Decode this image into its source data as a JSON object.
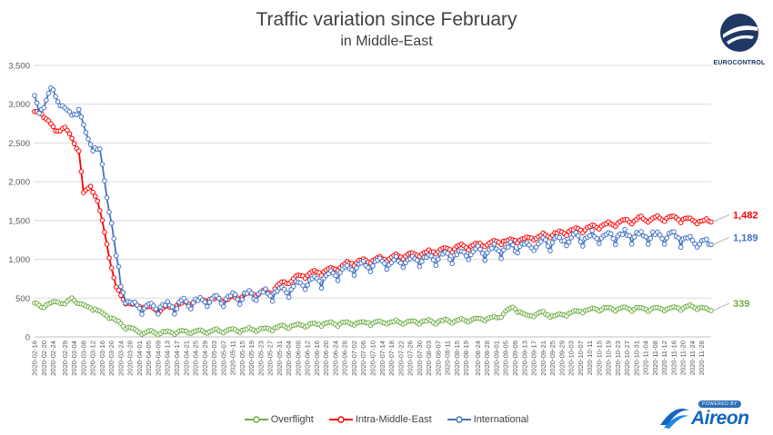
{
  "chart_data": {
    "type": "line",
    "title": "Traffic variation since February",
    "subtitle": "in Middle-East",
    "ylim": [
      0,
      3500
    ],
    "yticks": [
      0,
      500,
      1000,
      1500,
      2000,
      2500,
      3000,
      3500
    ],
    "ytick_labels": [
      "0",
      "500",
      "1,000",
      "1,500",
      "2,000",
      "2,500",
      "3,000",
      "3,500"
    ],
    "grid": "horizontal",
    "legend_position": "bottom",
    "x_start": "2020-02-16",
    "x_end": "2020-12-02",
    "x_tick_labels": [
      "2020-02-16",
      "2020-02-20",
      "2020-02-24",
      "2020-02-29",
      "2020-03-04",
      "2020-03-08",
      "2020-03-12",
      "2020-03-16",
      "2020-03-20",
      "2020-03-24",
      "2020-03-28",
      "2020-04-01",
      "2020-04-05",
      "2020-04-09",
      "2020-04-13",
      "2020-04-17",
      "2020-04-21",
      "2020-04-25",
      "2020-04-29",
      "2020-05-03",
      "2020-05-07",
      "2020-05-11",
      "2020-05-15",
      "2020-05-19",
      "2020-05-23",
      "2020-05-27",
      "2020-05-31",
      "2020-06-04",
      "2020-06-08",
      "2020-06-12",
      "2020-06-16",
      "2020-06-20",
      "2020-06-24",
      "2020-06-28",
      "2020-07-02",
      "2020-07-06",
      "2020-07-10",
      "2020-07-14",
      "2020-07-18",
      "2020-07-22",
      "2020-07-26",
      "2020-07-30",
      "2020-08-03",
      "2020-08-07",
      "2020-08-11",
      "2020-08-15",
      "2020-08-19",
      "2020-08-24",
      "2020-08-28",
      "2020-09-01",
      "2020-09-05",
      "2020-09-09",
      "2020-09-13",
      "2020-09-17",
      "2020-09-21",
      "2020-09-25",
      "2020-09-29",
      "2020-10-03",
      "2020-10-07",
      "2020-10-11",
      "2020-10-15",
      "2020-10-19",
      "2020-10-23",
      "2020-10-27",
      "2020-10-31",
      "2020-11-04",
      "2020-11-08",
      "2020-11-12",
      "2020-11-16",
      "2020-11-20",
      "2020-11-24",
      "2020-11-28"
    ],
    "series": [
      {
        "name": "Overflight",
        "color": "#70ad47",
        "end_label": "339",
        "anchors": [
          [
            "2020-02-16",
            430
          ],
          [
            "2020-02-19",
            390
          ],
          [
            "2020-02-22",
            420
          ],
          [
            "2020-02-26",
            460
          ],
          [
            "2020-02-29",
            420
          ],
          [
            "2020-03-03",
            500
          ],
          [
            "2020-03-06",
            430
          ],
          [
            "2020-03-09",
            390
          ],
          [
            "2020-03-13",
            360
          ],
          [
            "2020-03-16",
            300
          ],
          [
            "2020-03-20",
            250
          ],
          [
            "2020-03-24",
            160
          ],
          [
            "2020-03-28",
            110
          ],
          [
            "2020-04-01",
            60
          ],
          [
            "2020-04-10",
            55
          ],
          [
            "2020-04-20",
            65
          ],
          [
            "2020-05-01",
            75
          ],
          [
            "2020-05-15",
            90
          ],
          [
            "2020-05-25",
            100
          ],
          [
            "2020-06-01",
            130
          ],
          [
            "2020-06-10",
            150
          ],
          [
            "2020-06-20",
            170
          ],
          [
            "2020-07-01",
            180
          ],
          [
            "2020-07-15",
            190
          ],
          [
            "2020-08-01",
            195
          ],
          [
            "2020-08-15",
            210
          ],
          [
            "2020-09-01",
            240
          ],
          [
            "2020-09-08",
            380
          ],
          [
            "2020-09-14",
            270
          ],
          [
            "2020-09-20",
            310
          ],
          [
            "2020-09-26",
            260
          ],
          [
            "2020-10-01",
            300
          ],
          [
            "2020-10-08",
            340
          ],
          [
            "2020-10-15",
            360
          ],
          [
            "2020-10-25",
            370
          ],
          [
            "2020-11-05",
            360
          ],
          [
            "2020-11-15",
            370
          ],
          [
            "2020-11-25",
            390
          ],
          [
            "2020-12-02",
            339
          ]
        ],
        "amp_before_mar20": 25,
        "amp_after_mar20": 35
      },
      {
        "name": "Intra-Middle-East",
        "color": "#ff0000",
        "end_label": "1,482",
        "anchors": [
          [
            "2020-02-16",
            2900
          ],
          [
            "2020-02-19",
            2880
          ],
          [
            "2020-02-22",
            2780
          ],
          [
            "2020-02-25",
            2650
          ],
          [
            "2020-02-29",
            2700
          ],
          [
            "2020-03-03",
            2550
          ],
          [
            "2020-03-06",
            2400
          ],
          [
            "2020-03-08",
            1850
          ],
          [
            "2020-03-11",
            1950
          ],
          [
            "2020-03-14",
            1750
          ],
          [
            "2020-03-17",
            1350
          ],
          [
            "2020-03-20",
            900
          ],
          [
            "2020-03-22",
            620
          ],
          [
            "2020-03-24",
            520
          ],
          [
            "2020-03-28",
            420
          ],
          [
            "2020-04-03",
            380
          ],
          [
            "2020-04-10",
            350
          ],
          [
            "2020-04-20",
            430
          ],
          [
            "2020-05-01",
            480
          ],
          [
            "2020-05-10",
            490
          ],
          [
            "2020-05-20",
            560
          ],
          [
            "2020-05-27",
            580
          ],
          [
            "2020-06-01",
            680
          ],
          [
            "2020-06-10",
            800
          ],
          [
            "2020-06-20",
            850
          ],
          [
            "2020-07-01",
            960
          ],
          [
            "2020-07-15",
            1010
          ],
          [
            "2020-08-01",
            1080
          ],
          [
            "2020-08-15",
            1150
          ],
          [
            "2020-09-01",
            1220
          ],
          [
            "2020-09-15",
            1270
          ],
          [
            "2020-10-01",
            1350
          ],
          [
            "2020-10-15",
            1430
          ],
          [
            "2020-11-01",
            1520
          ],
          [
            "2020-11-15",
            1530
          ],
          [
            "2020-12-02",
            1482
          ]
        ],
        "amp_before_mar20": 30,
        "amp_after_mar20": 50
      },
      {
        "name": "International",
        "color": "#4472c4",
        "end_label": "1,189",
        "anchors": [
          [
            "2020-02-16",
            3100
          ],
          [
            "2020-02-18",
            2880
          ],
          [
            "2020-02-21",
            3050
          ],
          [
            "2020-02-23",
            3200
          ],
          [
            "2020-02-26",
            3050
          ],
          [
            "2020-02-29",
            2950
          ],
          [
            "2020-03-03",
            2850
          ],
          [
            "2020-03-06",
            2950
          ],
          [
            "2020-03-09",
            2600
          ],
          [
            "2020-03-12",
            2450
          ],
          [
            "2020-03-15",
            2400
          ],
          [
            "2020-03-18",
            1800
          ],
          [
            "2020-03-20",
            1500
          ],
          [
            "2020-03-22",
            1000
          ],
          [
            "2020-03-24",
            650
          ],
          [
            "2020-03-28",
            420
          ],
          [
            "2020-04-05",
            380
          ],
          [
            "2020-04-15",
            390
          ],
          [
            "2020-04-25",
            450
          ],
          [
            "2020-05-05",
            480
          ],
          [
            "2020-05-15",
            520
          ],
          [
            "2020-05-25",
            560
          ],
          [
            "2020-06-01",
            580
          ],
          [
            "2020-06-10",
            690
          ],
          [
            "2020-06-20",
            760
          ],
          [
            "2020-07-01",
            880
          ],
          [
            "2020-07-15",
            950
          ],
          [
            "2020-08-01",
            1000
          ],
          [
            "2020-08-15",
            1060
          ],
          [
            "2020-09-01",
            1120
          ],
          [
            "2020-09-15",
            1180
          ],
          [
            "2020-10-01",
            1250
          ],
          [
            "2020-10-15",
            1300
          ],
          [
            "2020-11-01",
            1310
          ],
          [
            "2020-11-15",
            1300
          ],
          [
            "2020-12-02",
            1189
          ]
        ],
        "amp_before_mar20": 50,
        "amp_after_mar20": 110
      }
    ]
  },
  "logos": {
    "top": {
      "text": "EUROCONTROL",
      "icon": "eurocontrol-logo-icon"
    },
    "bottom": {
      "badge": "POWERED BY",
      "word": "Aireon",
      "icon": "aireon-logo-icon"
    }
  }
}
